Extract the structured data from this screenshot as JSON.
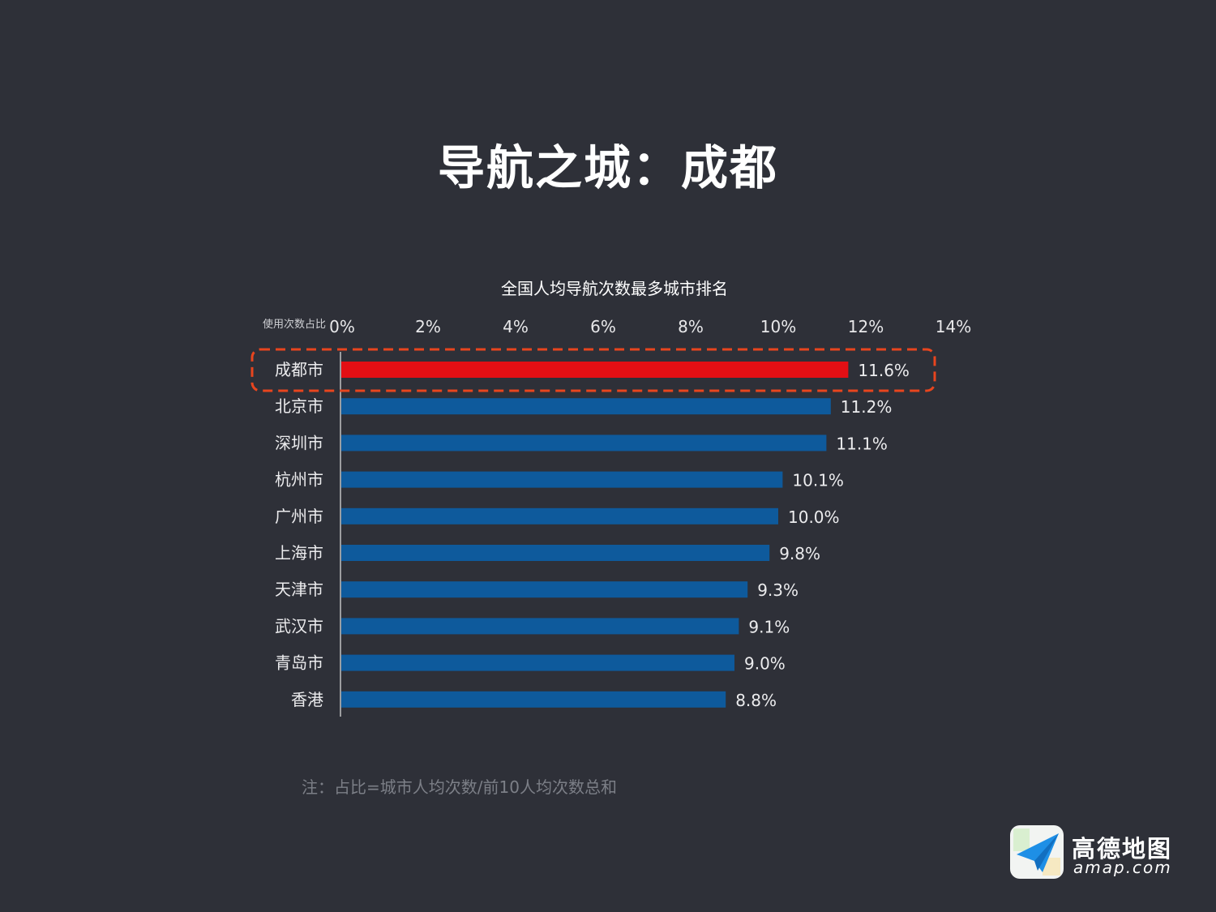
{
  "page": {
    "title": "导航之城：成都",
    "footnote": "注：占比=城市人均次数/前10人均次数总和"
  },
  "brand": {
    "name": "高德地图",
    "url": "amap.com",
    "logo_icon": "paper-plane-icon"
  },
  "colors": {
    "background": "#2e3038",
    "highlight_bar": "#e30f14",
    "normal_bar": "#0e5a9c",
    "highlight_border": "#e8451e"
  },
  "chart_data": {
    "type": "bar",
    "orientation": "horizontal",
    "title": "全国人均导航次数最多城市排名",
    "xlabel": "使用次数占比",
    "xlim": [
      0,
      14
    ],
    "xticks": [
      "0%",
      "2%",
      "4%",
      "6%",
      "8%",
      "10%",
      "12%",
      "14%"
    ],
    "categories": [
      "成都市",
      "北京市",
      "深圳市",
      "杭州市",
      "广州市",
      "上海市",
      "天津市",
      "武汉市",
      "青岛市",
      "香港"
    ],
    "values": [
      11.6,
      11.2,
      11.1,
      10.1,
      10.0,
      9.8,
      9.3,
      9.1,
      9.0,
      8.8
    ],
    "value_labels": [
      "11.6%",
      "11.2%",
      "11.1%",
      "10.1%",
      "10.0%",
      "9.8%",
      "9.3%",
      "9.1%",
      "9.0%",
      "8.8%"
    ],
    "highlight_index": 0,
    "legend": "none"
  }
}
